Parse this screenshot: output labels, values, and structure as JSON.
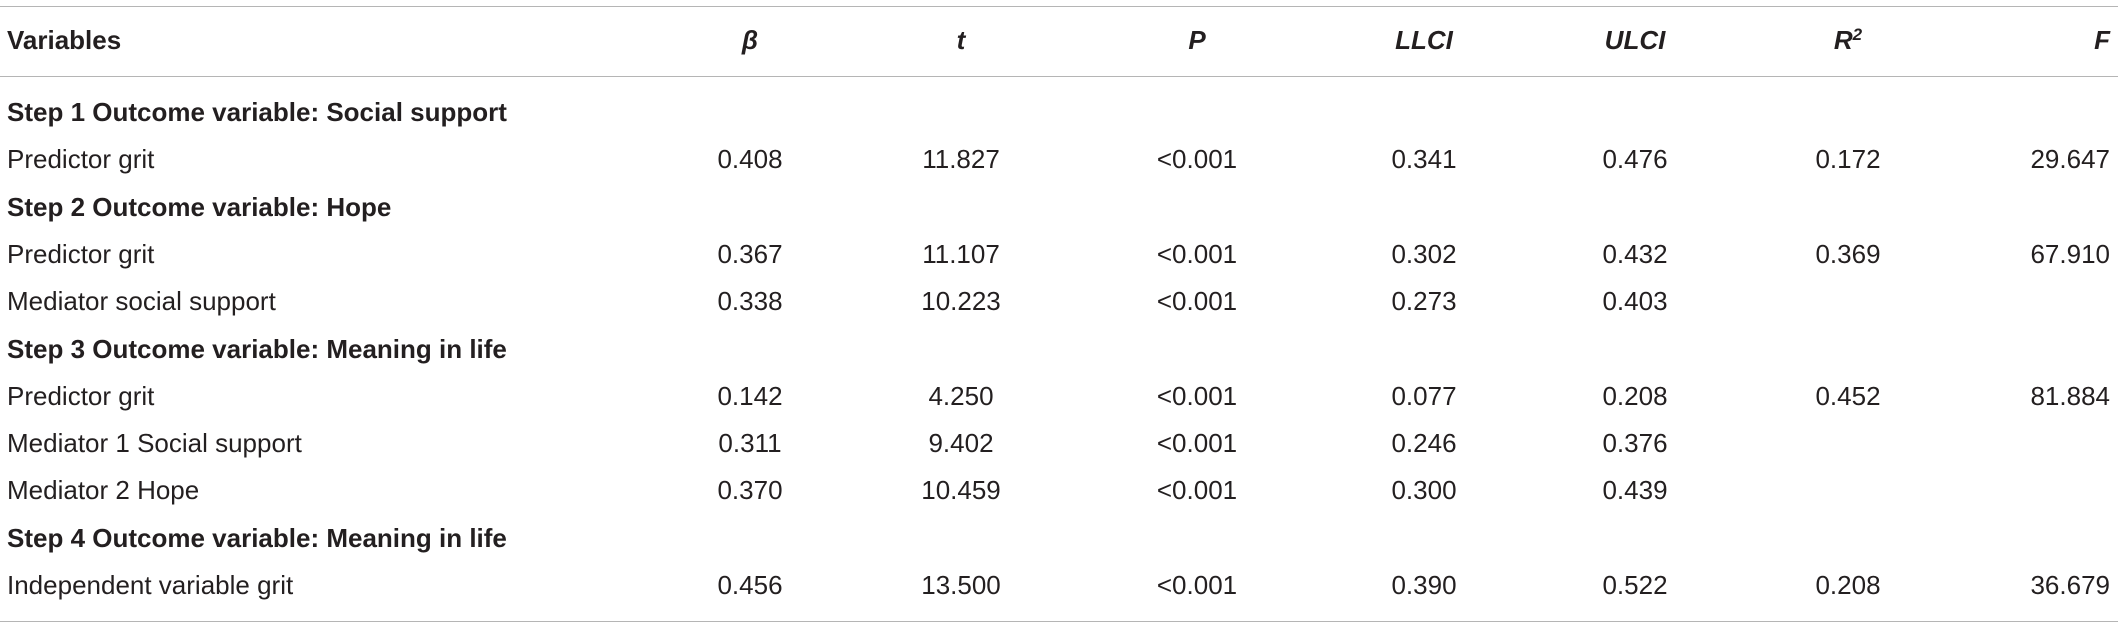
{
  "table": {
    "header": [
      {
        "text": "Variables"
      },
      {
        "text": "β"
      },
      {
        "text": "t"
      },
      {
        "text": "P"
      },
      {
        "text": "LLCI"
      },
      {
        "text": "ULCI"
      },
      {
        "text": "R",
        "sup": "2"
      },
      {
        "text": "F"
      }
    ],
    "rows": [
      {
        "section": "Step 1 Outcome variable: Social support"
      },
      {
        "cells": [
          "Predictor grit",
          "0.408",
          "11.827",
          "<0.001",
          "0.341",
          "0.476",
          "0.172",
          "29.647"
        ]
      },
      {
        "section": "Step 2 Outcome variable: Hope"
      },
      {
        "cells": [
          "Predictor grit",
          "0.367",
          "11.107",
          "<0.001",
          "0.302",
          "0.432",
          "0.369",
          "67.910"
        ]
      },
      {
        "cells": [
          "Mediator social support",
          "0.338",
          "10.223",
          "<0.001",
          "0.273",
          "0.403"
        ]
      },
      {
        "section": "Step 3 Outcome variable: Meaning in life"
      },
      {
        "cells": [
          "Predictor grit",
          "0.142",
          "4.250",
          "<0.001",
          "0.077",
          "0.208",
          "0.452",
          "81.884"
        ]
      },
      {
        "cells": [
          "Mediator 1 Social support",
          "0.311",
          "9.402",
          "<0.001",
          "0.246",
          "0.376"
        ]
      },
      {
        "cells": [
          "Mediator 2 Hope",
          "0.370",
          "10.459",
          "<0.001",
          "0.300",
          "0.439"
        ]
      },
      {
        "section": "Step 4 Outcome variable: Meaning in life"
      },
      {
        "cells": [
          "Independent variable grit",
          "0.456",
          "13.500",
          "<0.001",
          "0.390",
          "0.522",
          "0.208",
          "36.679"
        ]
      }
    ]
  }
}
